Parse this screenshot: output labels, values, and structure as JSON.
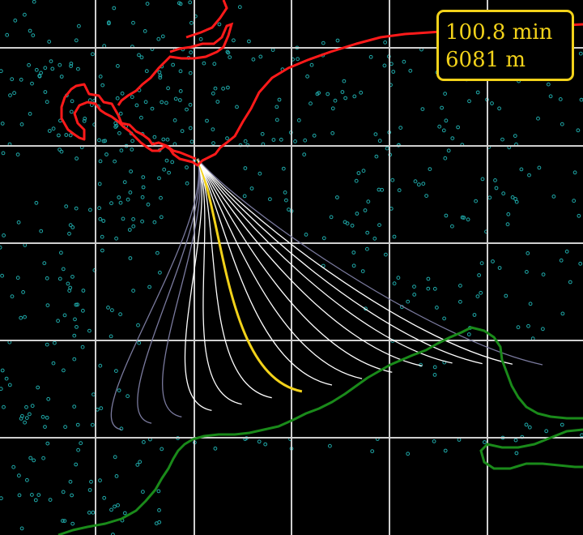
{
  "readout": {
    "time": "100.8 min",
    "distance": "6081 m"
  },
  "colors": {
    "background": "#000000",
    "grid": "#cfcfcf",
    "source_coastline": "#ff1a1a",
    "target_coastline": "#1a8a1a",
    "particles": "#1fa9a9",
    "trajectories": "#ffffff",
    "trajectories_faded": "#7a7a9e",
    "highlighted_trajectory": "#f2d21a",
    "readout_border": "#f2d21a",
    "readout_text": "#f2d21a"
  },
  "icons": {
    "particle": "small-hollow-circle",
    "coastline": "polyline"
  },
  "map": {
    "grid": "on",
    "trajectory_count": 15,
    "highlighted_trajectory_index": 6
  }
}
